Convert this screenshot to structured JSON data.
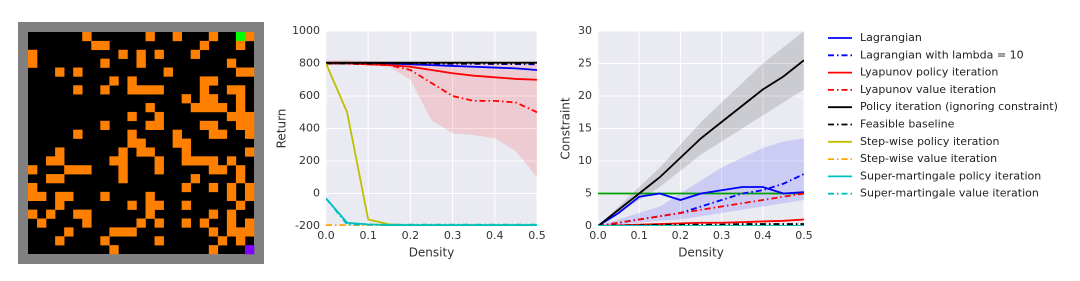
{
  "chart_data": [
    {
      "type": "line",
      "ylabel": "Return",
      "xlabel": "Density",
      "x": [
        0,
        0.05,
        0.1,
        0.15,
        0.2,
        0.25,
        0.3,
        0.35,
        0.4,
        0.45,
        0.5
      ],
      "xlim": [
        0,
        0.5
      ],
      "xticks": [
        {
          "value": 0,
          "label": "0.0"
        },
        0.1,
        0.2,
        0.3,
        0.4,
        0.5
      ],
      "ylim": [
        -200,
        1000
      ],
      "yticks": [
        -200,
        0,
        200,
        400,
        600,
        800,
        1000
      ],
      "grid": true,
      "legend": "right",
      "series": [
        {
          "name": "Lagrangian",
          "color": "#0000ff",
          "linestyle": "solid",
          "values": [
            800,
            800,
            800,
            800,
            795,
            790,
            785,
            780,
            775,
            770,
            760
          ]
        },
        {
          "name": "Lagrangian with lambda = 10",
          "color": "#0000ff",
          "linestyle": "dashdot",
          "values": [
            800,
            800,
            800,
            800,
            800,
            800,
            798,
            798,
            797,
            796,
            795
          ]
        },
        {
          "name": "Lyapunov policy iteration",
          "color": "#ff0000",
          "linestyle": "solid",
          "values": [
            800,
            800,
            795,
            790,
            780,
            760,
            740,
            725,
            715,
            705,
            700
          ]
        },
        {
          "name": "Lyapunov value iteration",
          "color": "#ff0000",
          "linestyle": "dashdot",
          "values": [
            800,
            800,
            795,
            790,
            760,
            680,
            600,
            570,
            570,
            560,
            500
          ],
          "band": {
            "lower": [
              800,
              800,
              790,
              780,
              700,
              450,
              370,
              360,
              340,
              260,
              100
            ],
            "upper": [
              820,
              820,
              815,
              810,
              810,
              805,
              800,
              800,
              800,
              800,
              800
            ]
          }
        },
        {
          "name": "Policy iteration (ignoring constraint)",
          "color": "#000000",
          "linestyle": "solid",
          "values": [
            805,
            805,
            805,
            805,
            805,
            805,
            805,
            805,
            805,
            805,
            805
          ]
        },
        {
          "name": "Feasible baseline",
          "color": "#000000",
          "linestyle": "dashdot",
          "values": [
            800,
            800,
            800,
            800,
            800,
            800,
            800,
            800,
            800,
            800,
            800
          ]
        },
        {
          "name": "Step-wise policy iteration",
          "color": "#bfbf00",
          "linestyle": "solid",
          "values": [
            800,
            500,
            -160,
            -190,
            -195,
            -195,
            -195,
            -195,
            -195,
            -195,
            -195
          ]
        },
        {
          "name": "Step-wise value iteration",
          "color": "#ffa500",
          "linestyle": "dashdot",
          "values": [
            -195,
            -195,
            -195,
            -195,
            -195,
            -195,
            -195,
            -195,
            -195,
            -195,
            -195
          ]
        },
        {
          "name": "Super-martingale policy iteration",
          "color": "#00bfbf",
          "linestyle": "solid",
          "values": [
            -30,
            -180,
            -190,
            -195,
            -195,
            -195,
            -195,
            -195,
            -195,
            -195,
            -195
          ]
        },
        {
          "name": "Super-martingale value iteration",
          "color": "#00bfbf",
          "linestyle": "dashdot",
          "values": [
            -30,
            -190,
            -192,
            -192,
            -192,
            -192,
            -192,
            -192,
            -192,
            -192,
            -192
          ]
        }
      ]
    },
    {
      "type": "line",
      "ylabel": "Constraint",
      "xlabel": "Density",
      "x": [
        0,
        0.05,
        0.1,
        0.15,
        0.2,
        0.25,
        0.3,
        0.35,
        0.4,
        0.45,
        0.5
      ],
      "xlim": [
        0,
        0.5
      ],
      "xticks": [
        {
          "value": 0,
          "label": "0.0"
        },
        0.1,
        0.2,
        0.3,
        0.4,
        0.5
      ],
      "ylim": [
        0,
        30
      ],
      "yticks": [
        0,
        5,
        10,
        15,
        20,
        25,
        30
      ],
      "grid": true,
      "threshold": {
        "value": 5,
        "color": "#00a000"
      },
      "series": [
        {
          "color": "#0000ff",
          "linestyle": "solid",
          "values": [
            0,
            2,
            4.5,
            5,
            4,
            5,
            5.5,
            6,
            6,
            5,
            5.2
          ]
        },
        {
          "color": "#0000ff",
          "linestyle": "dashdot",
          "values": [
            0,
            0.5,
            1,
            1.5,
            2,
            3,
            4,
            5,
            5.5,
            6.5,
            8
          ],
          "band": {
            "lower": [
              0,
              0.2,
              0.5,
              0.8,
              1,
              1.5,
              2,
              2.5,
              3,
              3.5,
              4
            ],
            "upper": [
              0,
              1,
              2,
              3,
              5,
              7,
              9,
              10.5,
              12,
              13,
              13.5
            ]
          }
        },
        {
          "color": "#ff0000",
          "linestyle": "solid",
          "values": [
            0,
            0.1,
            0.2,
            0.3,
            0.4,
            0.5,
            0.5,
            0.6,
            0.7,
            0.8,
            1
          ]
        },
        {
          "color": "#ff0000",
          "linestyle": "dashdot",
          "values": [
            0,
            0.5,
            1,
            1.5,
            2,
            2.5,
            3,
            3.5,
            4,
            4.5,
            5
          ]
        },
        {
          "color": "#000000",
          "linestyle": "solid",
          "values": [
            0,
            2.5,
            5,
            7.5,
            10.5,
            13.5,
            16,
            18.5,
            21,
            23,
            25.5
          ],
          "band": {
            "lower": [
              0,
              2,
              4,
              6,
              8.5,
              11,
              13,
              15,
              17,
              19,
              21
            ],
            "upper": [
              0,
              3,
              6,
              9,
              12.5,
              16,
              19,
              22,
              25,
              27.5,
              30
            ]
          }
        },
        {
          "color": "#000000",
          "linestyle": "dashdot",
          "values": [
            0,
            0.1,
            0.1,
            0.2,
            0.2,
            0.2,
            0.2,
            0.3,
            0.3,
            0.3,
            0.3
          ]
        },
        {
          "color": "#bfbf00",
          "linestyle": "solid",
          "values": [
            0,
            0,
            0,
            0,
            0,
            0,
            0,
            0,
            0,
            0,
            0
          ]
        },
        {
          "color": "#ffa500",
          "linestyle": "dashdot",
          "values": [
            0,
            0,
            0,
            0,
            0,
            0,
            0,
            0,
            0,
            0,
            0
          ]
        },
        {
          "color": "#00bfbf",
          "linestyle": "solid",
          "values": [
            0,
            0,
            0,
            0,
            0,
            0,
            0,
            0,
            0,
            0,
            0
          ]
        },
        {
          "color": "#00bfbf",
          "linestyle": "dashdot",
          "values": [
            0,
            0,
            0,
            0,
            0,
            0,
            0,
            0,
            0,
            0,
            0
          ]
        }
      ]
    }
  ]
}
